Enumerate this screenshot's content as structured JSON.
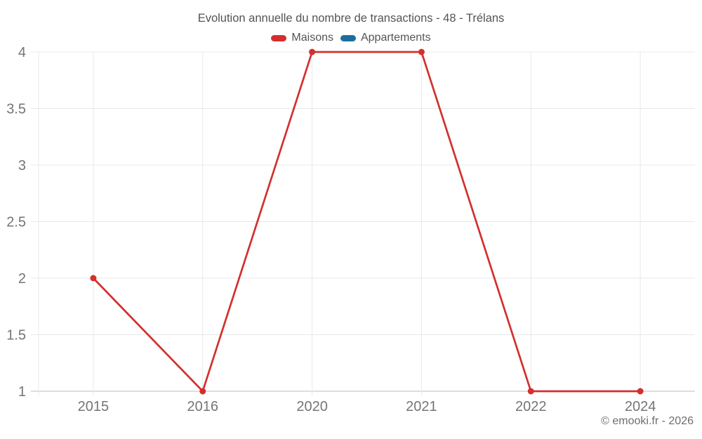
{
  "chart_data": {
    "type": "line",
    "title": "Evolution annuelle du nombre de transactions - 48 - Trélans",
    "categories": [
      "2015",
      "2016",
      "2020",
      "2021",
      "2022",
      "2024"
    ],
    "series": [
      {
        "name": "Maisons",
        "color": "#d32f2f",
        "values": [
          2,
          1,
          4,
          4,
          1,
          1
        ]
      },
      {
        "name": "Appartements",
        "color": "#1d6e9c",
        "values": [
          null,
          null,
          null,
          null,
          null,
          null
        ]
      }
    ],
    "xlabel": "",
    "ylabel": "",
    "ylim": [
      1,
      4
    ],
    "yticks": [
      1,
      1.5,
      2,
      2.5,
      3,
      3.5,
      4
    ],
    "grid": true,
    "legend_position": "top",
    "footer": "© emooki.fr - 2026",
    "colors": {
      "grid": "#e8e8e8",
      "axis": "#bdbdbd",
      "tick_label": "#757575",
      "title_text": "#545454"
    }
  }
}
